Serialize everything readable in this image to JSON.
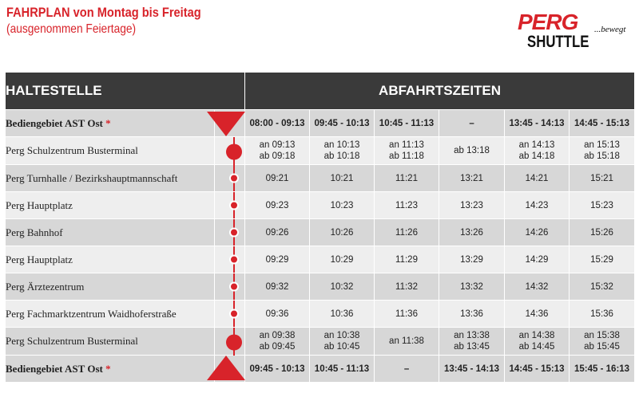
{
  "title": "FAHRPLAN von Montag bis Freitag",
  "subtitle": "(ausgenommen Feiertage)",
  "logo": {
    "word1": "PERG",
    "word2": "SHUTTLE",
    "tagline": "...bewegt"
  },
  "colors": {
    "accent": "#d8232a",
    "header": "#3a3a3a",
    "row_dark": "#d7d7d7",
    "row_light": "#eeeeee"
  },
  "table": {
    "col_stop": "HALTESTELLE",
    "col_times": "ABFAHRTSZEITEN",
    "top_zone": {
      "name": "Bediengebiet AST Ost",
      "star": "*",
      "times": [
        "08:00 - 09:13",
        "09:45 - 10:13",
        "10:45 - 11:13",
        "–",
        "13:45 - 14:13",
        "14:45 - 15:13"
      ]
    },
    "stops": [
      {
        "name": "Perg Schulzentrum Busterminal",
        "marker": "big",
        "times": [
          [
            "an 09:13",
            "ab 09:18"
          ],
          [
            "an 10:13",
            "ab 10:18"
          ],
          [
            "an 11:13",
            "ab 11:18"
          ],
          [
            "ab 13:18"
          ],
          [
            "an 14:13",
            "ab 14:18"
          ],
          [
            "an 15:13",
            "ab 15:18"
          ]
        ]
      },
      {
        "name": "Perg Turnhalle / Bezirkshauptmannschaft",
        "marker": "small",
        "times": [
          [
            "09:21"
          ],
          [
            "10:21"
          ],
          [
            "11:21"
          ],
          [
            "13:21"
          ],
          [
            "14:21"
          ],
          [
            "15:21"
          ]
        ]
      },
      {
        "name": "Perg Hauptplatz",
        "marker": "small",
        "times": [
          [
            "09:23"
          ],
          [
            "10:23"
          ],
          [
            "11:23"
          ],
          [
            "13:23"
          ],
          [
            "14:23"
          ],
          [
            "15:23"
          ]
        ]
      },
      {
        "name": "Perg Bahnhof",
        "marker": "small",
        "times": [
          [
            "09:26"
          ],
          [
            "10:26"
          ],
          [
            "11:26"
          ],
          [
            "13:26"
          ],
          [
            "14:26"
          ],
          [
            "15:26"
          ]
        ]
      },
      {
        "name": "Perg Hauptplatz",
        "marker": "small",
        "times": [
          [
            "09:29"
          ],
          [
            "10:29"
          ],
          [
            "11:29"
          ],
          [
            "13:29"
          ],
          [
            "14:29"
          ],
          [
            "15:29"
          ]
        ]
      },
      {
        "name": "Perg Ärztezentrum",
        "marker": "small",
        "times": [
          [
            "09:32"
          ],
          [
            "10:32"
          ],
          [
            "11:32"
          ],
          [
            "13:32"
          ],
          [
            "14:32"
          ],
          [
            "15:32"
          ]
        ]
      },
      {
        "name": "Perg Fachmarktzentrum Waidhoferstraße",
        "marker": "small",
        "times": [
          [
            "09:36"
          ],
          [
            "10:36"
          ],
          [
            "11:36"
          ],
          [
            "13:36"
          ],
          [
            "14:36"
          ],
          [
            "15:36"
          ]
        ]
      },
      {
        "name": "Perg Schulzentrum Busterminal",
        "marker": "big",
        "times": [
          [
            "an 09:38",
            "ab 09:45"
          ],
          [
            "an 10:38",
            "ab 10:45"
          ],
          [
            "an 11:38"
          ],
          [
            "an 13:38",
            "ab 13:45"
          ],
          [
            "an 14:38",
            "ab 14:45"
          ],
          [
            "an 15:38",
            "ab 15:45"
          ]
        ]
      }
    ],
    "bottom_zone": {
      "name": "Bediengebiet AST Ost",
      "star": "*",
      "times": [
        "09:45 - 10:13",
        "10:45 - 11:13",
        "–",
        "13:45 - 14:13",
        "14:45 - 15:13",
        "15:45 - 16:13"
      ]
    }
  }
}
